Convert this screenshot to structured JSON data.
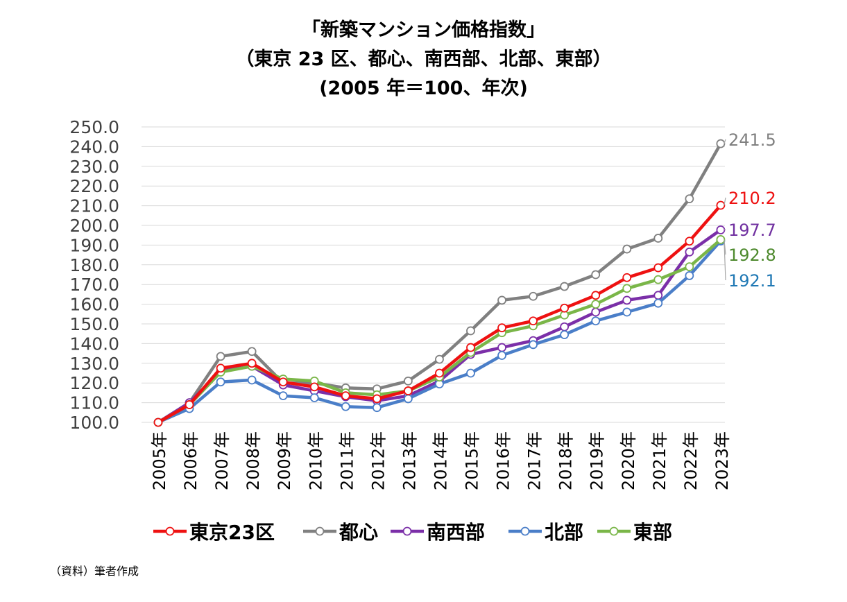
{
  "chart_data": {
    "type": "line",
    "title": "「新築マンション価格指数」",
    "subtitle": "（東京 23 区、都心、南西部、北部、東部）",
    "subtitle2": "(2005 年＝100、年次)",
    "source": "（資料）筆者作成",
    "categories": [
      "2005年",
      "2006年",
      "2007年",
      "2008年",
      "2009年",
      "2010年",
      "2011年",
      "2012年",
      "2013年",
      "2014年",
      "2015年",
      "2016年",
      "2017年",
      "2018年",
      "2019年",
      "2020年",
      "2021年",
      "2022年",
      "2023年"
    ],
    "y_ticks": [
      "100.0",
      "110.0",
      "120.0",
      "130.0",
      "140.0",
      "150.0",
      "160.0",
      "170.0",
      "180.0",
      "190.0",
      "200.0",
      "210.0",
      "220.0",
      "230.0",
      "240.0",
      "250.0"
    ],
    "ylim": [
      100,
      250
    ],
    "grid": true,
    "legend_position": "bottom",
    "series": [
      {
        "name": "東京23区",
        "color": "#ee1111",
        "values": [
          100,
          109,
          127.5,
          130,
          120.5,
          118,
          113.5,
          112,
          116,
          125,
          138,
          148,
          151.5,
          158,
          164.5,
          173.5,
          178.5,
          192,
          210.2
        ],
        "end_label": "210.2"
      },
      {
        "name": "都心",
        "color": "#808080",
        "values": [
          100,
          110,
          133.5,
          136,
          120,
          120,
          117.5,
          117,
          121,
          132,
          146.5,
          162,
          164,
          169,
          175,
          188,
          193.5,
          213.5,
          241.5
        ],
        "end_label": "241.5"
      },
      {
        "name": "南西部",
        "color": "#7b2fa8",
        "values": [
          100,
          110,
          126,
          128.5,
          119,
          116,
          113,
          111,
          113.5,
          121,
          134.5,
          138,
          141.5,
          148.5,
          156,
          162,
          164.5,
          186.5,
          197.7
        ],
        "end_label": "197.7"
      },
      {
        "name": "北部",
        "color": "#4a7ec8",
        "values": [
          100,
          107,
          120.5,
          121.5,
          113.5,
          112.5,
          108,
          107.5,
          112,
          119.5,
          125,
          134,
          139.5,
          144.5,
          151.5,
          156,
          160.5,
          174.5,
          192.1
        ],
        "end_label": "192.1"
      },
      {
        "name": "東部",
        "color": "#7ab648",
        "values": [
          100,
          109,
          125.5,
          128.5,
          122,
          121,
          115,
          114,
          116,
          123,
          135.5,
          145.5,
          149,
          154.5,
          160,
          168,
          172.5,
          179,
          192.8
        ],
        "end_label": "192.8"
      }
    ],
    "end_label_colors": {
      "東京23区": "#ee1111",
      "都心": "#808080",
      "南西部": "#7030a0",
      "北部": "#1f78b4",
      "東部": "#4e8a2e"
    }
  }
}
